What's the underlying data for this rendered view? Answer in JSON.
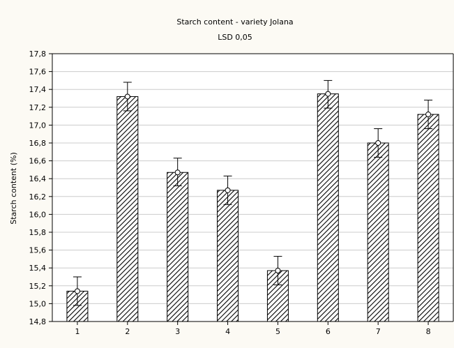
{
  "chart_data": {
    "type": "bar",
    "title": "Starch content - variety Jolana",
    "subtitle": "LSD 0,05",
    "xlabel": "",
    "ylabel": "Starch content (%)",
    "categories": [
      "1",
      "2",
      "3",
      "4",
      "5",
      "6",
      "7",
      "8"
    ],
    "values": [
      15.14,
      17.32,
      16.47,
      16.27,
      15.37,
      17.35,
      16.8,
      17.12
    ],
    "error_low": [
      14.98,
      17.16,
      16.32,
      16.11,
      15.21,
      17.19,
      16.64,
      16.96
    ],
    "error_high": [
      15.3,
      17.48,
      16.63,
      16.43,
      15.53,
      17.5,
      16.96,
      17.28
    ],
    "ylim": [
      14.8,
      17.8
    ],
    "yticks": [
      "14,8",
      "15,0",
      "15,2",
      "15,4",
      "15,6",
      "15,8",
      "16,0",
      "16,2",
      "16,4",
      "16,6",
      "16,8",
      "17,0",
      "17,2",
      "17,4",
      "17,6",
      "17,8"
    ],
    "grid": true,
    "bar_pattern": "diagonal-hatch",
    "colors": {
      "background": "#fcfaf4",
      "plot_background": "#ffffff",
      "grid": "#cccccc",
      "bar_hatch": "#000000"
    }
  }
}
